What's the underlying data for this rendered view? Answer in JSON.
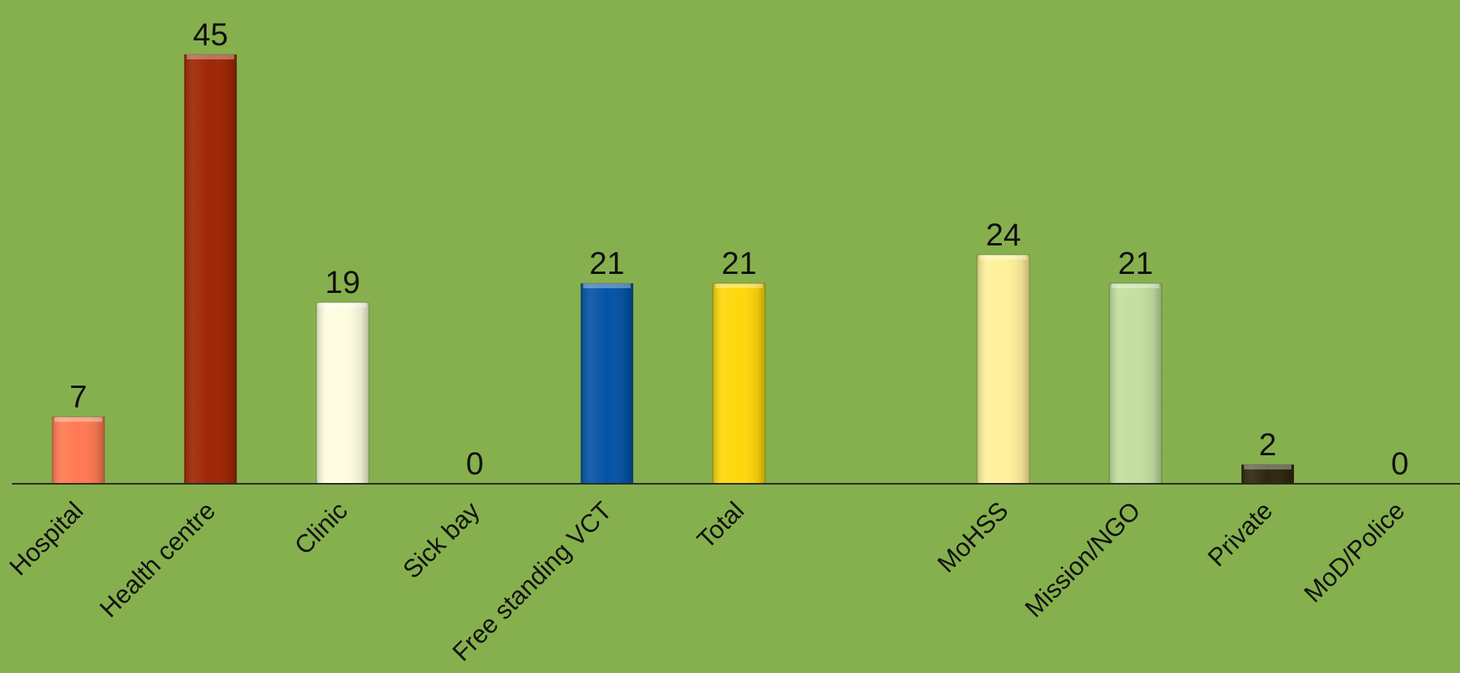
{
  "chart_data": {
    "type": "bar",
    "categories": [
      "Hospital",
      "Health centre",
      "Clinic",
      "Sick bay",
      "Free standing VCT",
      "Total",
      "",
      "MoHSS",
      "Mission/NGO",
      "Private",
      "MoD/Police"
    ],
    "values": [
      7,
      45,
      19,
      0,
      21,
      21,
      null,
      24,
      21,
      2,
      0
    ],
    "data_labels": [
      "7",
      "45",
      "19",
      "0",
      "21",
      "21",
      "",
      "24",
      "21",
      "2",
      "0"
    ],
    "colors": [
      "#ff7a52",
      "#a02604",
      "#fefde0",
      "#86b04d",
      "#0553a5",
      "#ffd70a",
      "",
      "#fff09a",
      "#c2dea0",
      "#2e2810",
      "#86b04d"
    ],
    "title": "",
    "xlabel": "",
    "ylabel": "",
    "ylim": [
      0,
      45
    ],
    "grid": false,
    "legend": "none",
    "background": "#86b04d"
  }
}
